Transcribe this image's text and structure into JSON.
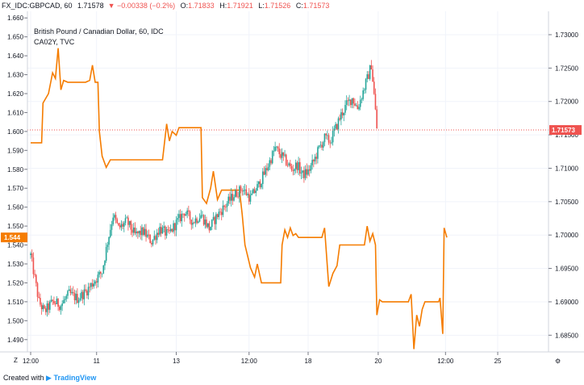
{
  "header": {
    "symbol": "FX_IDC:GBPCAD, 60",
    "last": "1.71578",
    "change": "−0.00338 (−0.2%)",
    "open_label": "O:",
    "open": "1.71833",
    "high_label": "H:",
    "high": "1.71921",
    "low_label": "L:",
    "low": "1.71526",
    "close_label": "C:",
    "close": "1.71573"
  },
  "legend": {
    "title": "British Pound / Canadian Dollar, 60, IDC",
    "subtitle": "CA02Y, TVC"
  },
  "footer": {
    "created_with": "Created with",
    "brand": "TradingView"
  },
  "axis_buttons": {
    "zoom": "Z",
    "settings": "⚙"
  },
  "colors": {
    "up": "#26a69a",
    "down": "#ef5350",
    "overlay": "#f57c00",
    "overlay_tag": "#f57c00",
    "price_tag": "#ef5350"
  },
  "chart_data": [
    {
      "type": "candlestick",
      "name": "GBPCAD",
      "axis": "right",
      "ylim": [
        1.6825,
        1.7335
      ],
      "yticks": [
        1.685,
        1.69,
        1.695,
        1.7,
        1.705,
        1.71,
        1.715,
        1.72,
        1.725,
        1.73
      ],
      "ytick_labels": [
        "1.68500",
        "1.69000",
        "1.69500",
        "1.70000",
        "1.70500",
        "1.71000",
        "1.71500",
        "1.72000",
        "1.72500",
        "1.73000"
      ],
      "last_price": "1.71573",
      "x_tick_labels": [
        "12:00",
        "11",
        "13",
        "12:00",
        "18",
        "20",
        "12:00",
        "25"
      ],
      "close_path": [
        [
          0,
          1.697
        ],
        [
          6,
          1.69
        ],
        [
          10,
          1.6885
        ],
        [
          16,
          1.69
        ],
        [
          22,
          1.6895
        ],
        [
          28,
          1.6912
        ],
        [
          34,
          1.6905
        ],
        [
          40,
          1.6915
        ],
        [
          46,
          1.693
        ],
        [
          52,
          1.6945
        ],
        [
          56,
          1.699
        ],
        [
          60,
          1.703
        ],
        [
          64,
          1.701
        ],
        [
          70,
          1.702
        ],
        [
          76,
          1.7
        ],
        [
          82,
          1.7005
        ],
        [
          88,
          1.699
        ],
        [
          94,
          1.701
        ],
        [
          100,
          1.7
        ],
        [
          106,
          1.7018
        ],
        [
          112,
          1.7035
        ],
        [
          118,
          1.702
        ],
        [
          124,
          1.703
        ],
        [
          130,
          1.701
        ],
        [
          136,
          1.703
        ],
        [
          142,
          1.7045
        ],
        [
          148,
          1.706
        ],
        [
          154,
          1.707
        ],
        [
          160,
          1.7055
        ],
        [
          166,
          1.7075
        ],
        [
          172,
          1.71
        ],
        [
          178,
          1.713
        ],
        [
          182,
          1.712
        ],
        [
          186,
          1.711
        ],
        [
          190,
          1.7098
        ],
        [
          194,
          1.7105
        ],
        [
          198,
          1.709
        ],
        [
          202,
          1.7095
        ],
        [
          206,
          1.711
        ],
        [
          210,
          1.713
        ],
        [
          214,
          1.7145
        ],
        [
          218,
          1.714
        ],
        [
          222,
          1.716
        ],
        [
          226,
          1.718
        ],
        [
          230,
          1.7195
        ],
        [
          234,
          1.7205
        ],
        [
          238,
          1.719
        ],
        [
          242,
          1.7215
        ],
        [
          246,
          1.724
        ],
        [
          248,
          1.7255
        ],
        [
          250,
          1.721
        ],
        [
          252,
          1.716
        ]
      ]
    },
    {
      "type": "line",
      "name": "CA02Y",
      "axis": "left",
      "ylim": [
        1.4835,
        1.6635
      ],
      "yticks": [
        1.49,
        1.5,
        1.51,
        1.52,
        1.53,
        1.54,
        1.55,
        1.56,
        1.57,
        1.58,
        1.59,
        1.6,
        1.61,
        1.62,
        1.63,
        1.64,
        1.65,
        1.66
      ],
      "ytick_labels": [
        "1.490",
        "1.500",
        "1.510",
        "1.520",
        "1.530",
        "1.540",
        "1.550",
        "1.560",
        "1.570",
        "1.580",
        "1.590",
        "1.600",
        "1.610",
        "1.620",
        "1.630",
        "1.640",
        "1.650",
        "1.660"
      ],
      "last_value": "1.544",
      "points": [
        [
          0,
          1.594
        ],
        [
          8,
          1.594
        ],
        [
          9,
          1.615
        ],
        [
          13,
          1.62
        ],
        [
          16,
          1.631
        ],
        [
          18,
          1.628
        ],
        [
          20,
          1.644
        ],
        [
          22,
          1.622
        ],
        [
          24,
          1.627
        ],
        [
          27,
          1.626
        ],
        [
          40,
          1.626
        ],
        [
          43,
          1.627
        ],
        [
          45,
          1.635
        ],
        [
          47,
          1.626
        ],
        [
          49,
          1.626
        ],
        [
          50,
          1.6
        ],
        [
          52,
          1.587
        ],
        [
          55,
          1.581
        ],
        [
          58,
          1.585
        ],
        [
          96,
          1.585
        ],
        [
          99,
          1.604
        ],
        [
          101,
          1.595
        ],
        [
          103,
          1.6
        ],
        [
          106,
          1.598
        ],
        [
          108,
          1.602
        ],
        [
          116,
          1.602
        ],
        [
          124,
          1.602
        ],
        [
          125,
          1.565
        ],
        [
          128,
          1.562
        ],
        [
          131,
          1.57
        ],
        [
          133,
          1.579
        ],
        [
          136,
          1.564
        ],
        [
          139,
          1.569
        ],
        [
          152,
          1.569
        ],
        [
          154,
          1.556
        ],
        [
          156,
          1.54
        ],
        [
          160,
          1.528
        ],
        [
          163,
          1.523
        ],
        [
          165,
          1.53
        ],
        [
          168,
          1.52
        ],
        [
          182,
          1.52
        ],
        [
          183,
          1.54
        ],
        [
          185,
          1.548
        ],
        [
          187,
          1.544
        ],
        [
          189,
          1.549
        ],
        [
          191,
          1.545
        ],
        [
          193,
          1.546
        ],
        [
          195,
          1.544
        ],
        [
          212,
          1.544
        ],
        [
          214,
          1.549
        ],
        [
          217,
          1.518
        ],
        [
          220,
          1.525
        ],
        [
          223,
          1.529
        ],
        [
          225,
          1.54
        ],
        [
          243,
          1.54
        ],
        [
          245,
          1.55
        ],
        [
          247,
          1.542
        ],
        [
          249,
          1.546
        ],
        [
          251,
          1.54
        ],
        [
          252,
          1.503
        ],
        [
          254,
          1.511
        ],
        [
          256,
          1.51
        ],
        [
          275,
          1.51
        ],
        [
          277,
          1.514
        ],
        [
          279,
          1.485
        ],
        [
          281,
          1.503
        ],
        [
          283,
          1.497
        ],
        [
          285,
          1.506
        ],
        [
          287,
          1.51
        ],
        [
          297,
          1.51
        ],
        [
          298,
          1.512
        ],
        [
          300,
          1.493
        ],
        [
          301,
          1.549
        ],
        [
          303,
          1.544
        ]
      ]
    }
  ]
}
